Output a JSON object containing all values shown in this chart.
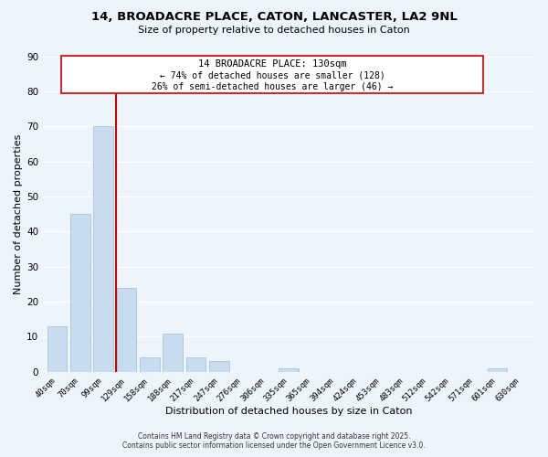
{
  "title": "14, BROADACRE PLACE, CATON, LANCASTER, LA2 9NL",
  "subtitle": "Size of property relative to detached houses in Caton",
  "xlabel": "Distribution of detached houses by size in Caton",
  "ylabel": "Number of detached properties",
  "bar_color": "#c8dcf0",
  "bar_edge_color": "#a8c4e0",
  "background_color": "#eef4fc",
  "grid_color": "#ffffff",
  "bins": [
    "40sqm",
    "70sqm",
    "99sqm",
    "129sqm",
    "158sqm",
    "188sqm",
    "217sqm",
    "247sqm",
    "276sqm",
    "306sqm",
    "335sqm",
    "365sqm",
    "394sqm",
    "424sqm",
    "453sqm",
    "483sqm",
    "512sqm",
    "542sqm",
    "571sqm",
    "601sqm",
    "630sqm"
  ],
  "values": [
    13,
    45,
    70,
    24,
    4,
    11,
    4,
    3,
    0,
    0,
    1,
    0,
    0,
    0,
    0,
    0,
    0,
    0,
    0,
    1,
    0
  ],
  "ylim": [
    0,
    90
  ],
  "yticks": [
    0,
    10,
    20,
    30,
    40,
    50,
    60,
    70,
    80,
    90
  ],
  "red_line_bin_index": 3,
  "annotation_line1": "14 BROADACRE PLACE: 130sqm",
  "annotation_line2": "← 74% of detached houses are smaller (128)",
  "annotation_line3": "26% of semi-detached houses are larger (46) →",
  "red_line_color": "#cc0000",
  "annotation_box_facecolor": "#ffffff",
  "annotation_box_edgecolor": "#cc0000",
  "footer_line1": "Contains HM Land Registry data © Crown copyright and database right 2025.",
  "footer_line2": "Contains public sector information licensed under the Open Government Licence v3.0."
}
